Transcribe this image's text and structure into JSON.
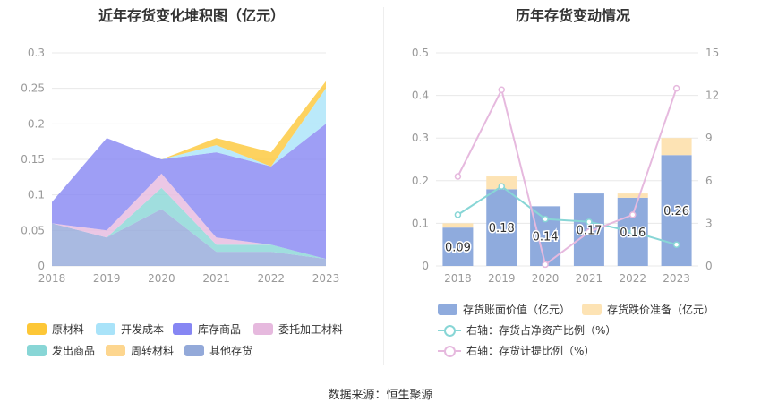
{
  "source": "数据来源：恒生聚源",
  "colors": {
    "raw_materials": "#FDC737",
    "development_cost": "#A9E3F9",
    "finished_goods": "#8686F3",
    "consigned_processing": "#E6B9DE",
    "goods_shipped": "#88D6D6",
    "turnover_materials": "#FDD68F",
    "other_inventory": "#93A9D9",
    "book_value": "#8FABDD",
    "impairment": "#FDE3B4",
    "net_asset_ratio": "#88D6D6",
    "provision_ratio": "#E6B9DE"
  },
  "chart_data": [
    {
      "type": "area",
      "stacked": true,
      "title": "近年存货变化堆积图（亿元）",
      "x": [
        "2018",
        "2019",
        "2020",
        "2021",
        "2022",
        "2023"
      ],
      "ylim": [
        0,
        0.3
      ],
      "yticks": [
        "0",
        "0.05",
        "0.1",
        "0.15",
        "0.2",
        "0.25",
        "0.3"
      ],
      "grid": true,
      "legend_position": "bottom",
      "series": [
        {
          "name": "其他存货",
          "values": [
            0.06,
            0.04,
            0.08,
            0.02,
            0.02,
            0.01
          ]
        },
        {
          "name": "发出商品",
          "values": [
            0,
            0,
            0.03,
            0.01,
            0.01,
            0
          ]
        },
        {
          "name": "委托加工材料",
          "values": [
            0,
            0.01,
            0.02,
            0.01,
            0,
            0
          ]
        },
        {
          "name": "库存商品",
          "values": [
            0.03,
            0.13,
            0.02,
            0.12,
            0.11,
            0.19
          ]
        },
        {
          "name": "开发成本",
          "values": [
            0,
            0,
            0,
            0.01,
            0,
            0.05
          ]
        },
        {
          "name": "周转材料",
          "values": [
            0,
            0,
            0,
            0,
            0,
            0
          ]
        },
        {
          "name": "原材料",
          "values": [
            0,
            0,
            0,
            0.01,
            0.02,
            0.01
          ]
        }
      ],
      "legend": [
        "原材料",
        "开发成本",
        "库存商品",
        "委托加工材料",
        "发出商品",
        "周转材料",
        "其他存货"
      ]
    },
    {
      "type": "bar",
      "title": "历年存货变动情况",
      "categories": [
        "2018",
        "2019",
        "2020",
        "2021",
        "2022",
        "2023"
      ],
      "ylim": [
        0,
        0.5
      ],
      "yticks": [
        "0",
        "0.1",
        "0.2",
        "0.3",
        "0.4",
        "0.5"
      ],
      "ylim_right": [
        0,
        15
      ],
      "yticks_right": [
        "0",
        "3",
        "6",
        "9",
        "12",
        "15"
      ],
      "grid": true,
      "legend_position": "bottom",
      "series": [
        {
          "name": "存货账面价值（亿元）",
          "type": "bar",
          "values": [
            0.09,
            0.18,
            0.14,
            0.17,
            0.16,
            0.26
          ],
          "labels": [
            "0.09",
            "0.18",
            "0.14",
            "0.17",
            "0.16",
            "0.26"
          ]
        },
        {
          "name": "存货跌价准备（亿元）",
          "type": "bar",
          "values": [
            0.01,
            0.03,
            0,
            0,
            0.01,
            0.04
          ]
        },
        {
          "name": "右轴：存货占净资产比例（%）",
          "type": "line",
          "axis": "right",
          "values": [
            3.6,
            5.6,
            3.3,
            3.1,
            2.4,
            1.5
          ]
        },
        {
          "name": "右轴：存货计提比例（%）",
          "type": "line",
          "axis": "right",
          "values": [
            6.3,
            12.4,
            0.1,
            2.4,
            3.6,
            12.5
          ]
        }
      ]
    }
  ]
}
